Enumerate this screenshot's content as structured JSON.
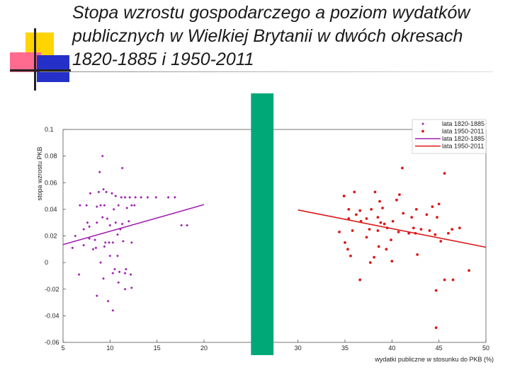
{
  "slide": {
    "title": "Stopa wzrostu gospodarczego a poziom wydatków publicznych w Wielkiej Brytanii w dwóch okresach 1820-1885 i 1950-2011"
  },
  "colors": {
    "series_1820": "#a020b0",
    "series_1950": "#dd1818",
    "separator": "#00a878",
    "deco_yellow": "#ffd400",
    "deco_pink": "#ff6b8f",
    "deco_blue": "#2530c8"
  },
  "chart_data": {
    "type": "scatter",
    "xlabel": "wydatki publiczne w stosunku do PKB (%)",
    "ylabel": "stopa wzrostu PKB",
    "xlim": [
      5,
      50
    ],
    "ylim": [
      -0.06,
      0.1
    ],
    "xticks": [
      "5",
      "10",
      "15",
      "20",
      "30",
      "35",
      "40",
      "45",
      "50"
    ],
    "xtick_values": [
      5,
      10,
      15,
      20,
      30,
      35,
      40,
      45,
      50
    ],
    "yticks": [
      "0.1",
      "0.08",
      "0.06",
      "0.04",
      "0.02",
      "0",
      "-0.02",
      "-0.04",
      "-0.06"
    ],
    "ytick_values": [
      0.1,
      0.08,
      0.06,
      0.04,
      0.02,
      0,
      -0.02,
      -0.04,
      -0.06
    ],
    "separator_band": [
      25,
      27.4
    ],
    "legend_position": "top-right",
    "legend": [
      "lata 1820-1885",
      "lata 1950-2011",
      "lata 1820-1885",
      "lata 1950-2011"
    ],
    "series": [
      {
        "name": "lata 1820-1885",
        "kind": "points",
        "points": [
          [
            9.2,
            0.08
          ],
          [
            8.9,
            0.068
          ],
          [
            11.3,
            0.071
          ],
          [
            8.8,
            0.053
          ],
          [
            9.3,
            0.055
          ],
          [
            9.6,
            0.053
          ],
          [
            10.2,
            0.052
          ],
          [
            10.6,
            0.05
          ],
          [
            7.9,
            0.052
          ],
          [
            11.2,
            0.049
          ],
          [
            11.6,
            0.049
          ],
          [
            12.1,
            0.049
          ],
          [
            12.7,
            0.049
          ],
          [
            13.3,
            0.049
          ],
          [
            14.0,
            0.049
          ],
          [
            14.9,
            0.049
          ],
          [
            16.2,
            0.049
          ],
          [
            16.9,
            0.049
          ],
          [
            6.8,
            0.043
          ],
          [
            7.5,
            0.043
          ],
          [
            8.6,
            0.042
          ],
          [
            9.0,
            0.043
          ],
          [
            9.4,
            0.043
          ],
          [
            10.4,
            0.04
          ],
          [
            10.9,
            0.043
          ],
          [
            11.8,
            0.041
          ],
          [
            12.3,
            0.043
          ],
          [
            12.6,
            0.043
          ],
          [
            9.2,
            0.034
          ],
          [
            9.7,
            0.033
          ],
          [
            10.6,
            0.03
          ],
          [
            11.3,
            0.029
          ],
          [
            12.0,
            0.031
          ],
          [
            8.6,
            0.03
          ],
          [
            7.6,
            0.03
          ],
          [
            7.2,
            0.025
          ],
          [
            7.8,
            0.027
          ],
          [
            10.0,
            0.028
          ],
          [
            11.1,
            0.025
          ],
          [
            10.8,
            0.021
          ],
          [
            6.3,
            0.02
          ],
          [
            7.8,
            0.018
          ],
          [
            8.4,
            0.017
          ],
          [
            9.5,
            0.015
          ],
          [
            9.9,
            0.015
          ],
          [
            10.3,
            0.015
          ],
          [
            11.4,
            0.016
          ],
          [
            12.3,
            0.015
          ],
          [
            8.2,
            0.01
          ],
          [
            8.5,
            0.011
          ],
          [
            9.4,
            0.012
          ],
          [
            6.0,
            0.011
          ],
          [
            7.2,
            0.013
          ],
          [
            10.8,
            0.005
          ],
          [
            10.0,
            0.005
          ],
          [
            9.0,
            0.0
          ],
          [
            10.5,
            -0.005
          ],
          [
            11.7,
            -0.005
          ],
          [
            6.7,
            -0.009
          ],
          [
            10.3,
            -0.008
          ],
          [
            11.0,
            -0.007
          ],
          [
            11.6,
            -0.008
          ],
          [
            12.2,
            -0.009
          ],
          [
            9.3,
            -0.012
          ],
          [
            10.9,
            -0.015
          ],
          [
            11.6,
            -0.02
          ],
          [
            12.3,
            -0.019
          ],
          [
            8.6,
            -0.025
          ],
          [
            9.8,
            -0.029
          ],
          [
            10.3,
            -0.036
          ],
          [
            17.6,
            0.028
          ],
          [
            18.2,
            0.028
          ]
        ]
      },
      {
        "name": "lata 1950-2011",
        "kind": "points",
        "points": [
          [
            41.1,
            0.071
          ],
          [
            45.6,
            0.067
          ],
          [
            36.0,
            0.053
          ],
          [
            38.2,
            0.053
          ],
          [
            40.8,
            0.051
          ],
          [
            34.9,
            0.05
          ],
          [
            38.7,
            0.046
          ],
          [
            40.5,
            0.047
          ],
          [
            44.3,
            0.042
          ],
          [
            45.0,
            0.044
          ],
          [
            35.4,
            0.04
          ],
          [
            36.6,
            0.039
          ],
          [
            37.8,
            0.04
          ],
          [
            39.0,
            0.041
          ],
          [
            41.2,
            0.037
          ],
          [
            42.6,
            0.04
          ],
          [
            43.7,
            0.036
          ],
          [
            36.2,
            0.036
          ],
          [
            38.5,
            0.034
          ],
          [
            42.1,
            0.034
          ],
          [
            44.8,
            0.034
          ],
          [
            35.4,
            0.033
          ],
          [
            36.7,
            0.031
          ],
          [
            37.3,
            0.033
          ],
          [
            38.8,
            0.03
          ],
          [
            39.2,
            0.029
          ],
          [
            40.1,
            0.031
          ],
          [
            42.3,
            0.026
          ],
          [
            43.1,
            0.025
          ],
          [
            44.0,
            0.024
          ],
          [
            34.4,
            0.023
          ],
          [
            35.8,
            0.024
          ],
          [
            37.6,
            0.025
          ],
          [
            38.5,
            0.024
          ],
          [
            39.5,
            0.026
          ],
          [
            40.7,
            0.023
          ],
          [
            41.8,
            0.022
          ],
          [
            42.5,
            0.022
          ],
          [
            44.6,
            0.021
          ],
          [
            46.0,
            0.022
          ],
          [
            46.4,
            0.025
          ],
          [
            47.2,
            0.026
          ],
          [
            37.3,
            0.019
          ],
          [
            39.9,
            0.017
          ],
          [
            45.2,
            0.016
          ],
          [
            35.0,
            0.015
          ],
          [
            38.6,
            0.012
          ],
          [
            35.3,
            0.01
          ],
          [
            39.4,
            0.01
          ],
          [
            35.6,
            0.005
          ],
          [
            38.1,
            0.004
          ],
          [
            42.7,
            0.006
          ],
          [
            37.7,
            0.0
          ],
          [
            40.0,
            0.001
          ],
          [
            48.2,
            -0.006
          ],
          [
            45.6,
            -0.013
          ],
          [
            46.5,
            -0.013
          ],
          [
            36.6,
            -0.013
          ],
          [
            44.7,
            -0.021
          ],
          [
            44.7,
            -0.049
          ]
        ]
      },
      {
        "name": "lata 1820-1885",
        "kind": "line",
        "points": [
          [
            5.0,
            0.0135
          ],
          [
            20.0,
            0.0435
          ]
        ]
      },
      {
        "name": "lata 1950-2011",
        "kind": "line",
        "points": [
          [
            30.0,
            0.0395
          ],
          [
            50.0,
            0.0115
          ]
        ]
      }
    ]
  }
}
